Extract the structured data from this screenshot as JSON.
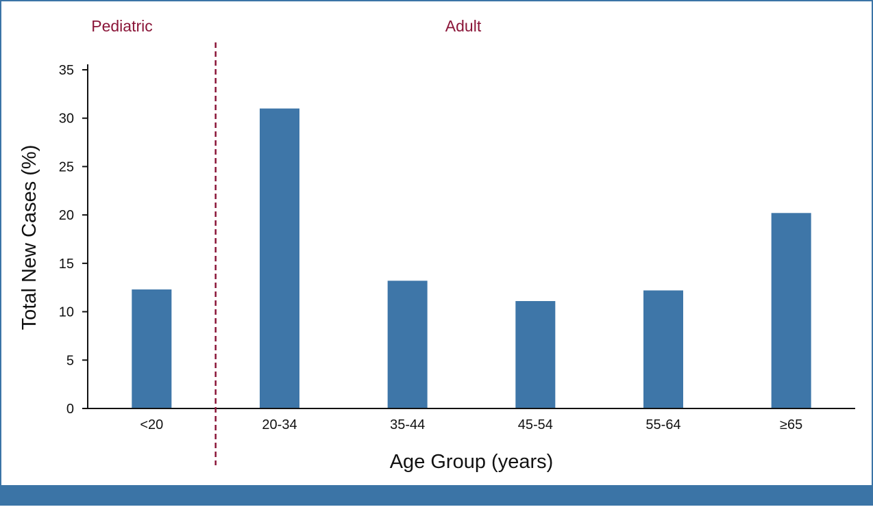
{
  "chart_data": {
    "type": "bar",
    "categories": [
      "<20",
      "20-34",
      "35-44",
      "45-54",
      "55-64",
      "≥65"
    ],
    "values": [
      12.3,
      31.0,
      13.2,
      11.1,
      12.2,
      20.2
    ],
    "xlabel": "Age Group (years)",
    "ylabel": "Total New Cases (%)",
    "ylim": [
      0,
      35
    ],
    "yticks": [
      0,
      5,
      10,
      15,
      20,
      25,
      30,
      35
    ],
    "regions": [
      {
        "label": "Pediatric",
        "categories": [
          "<20"
        ]
      },
      {
        "label": "Adult",
        "categories": [
          "20-34",
          "35-44",
          "45-54",
          "55-64",
          "≥65"
        ]
      }
    ],
    "grid": false,
    "bar_color": "#3e76a8",
    "divider_color": "#8a1538",
    "accent_color": "#3b74a6"
  }
}
